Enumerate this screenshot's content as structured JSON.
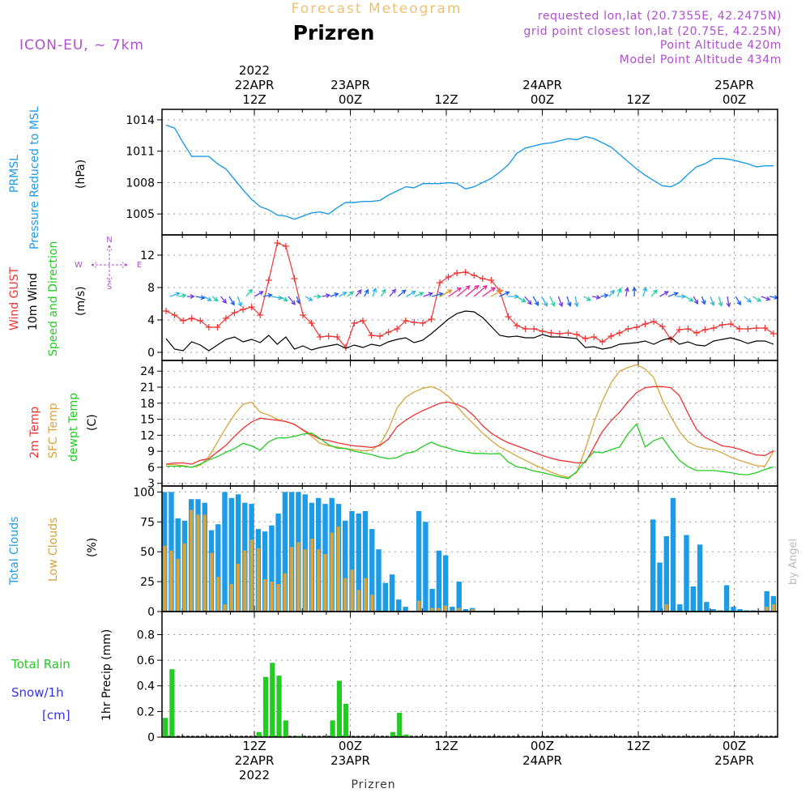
{
  "header": {
    "product": "Forecast Meteogram",
    "location": "Prizren",
    "model": "ICON-EU, ~ 7km",
    "requested": "requested lon,lat (20.7355E, 42.2475N)",
    "grid": "grid point closest lon,lat (20.75E, 42.25N)",
    "point_alt": "Point Altitude 420m",
    "model_alt": "Model Point Altitude 434m",
    "footer": "Prizren",
    "credit": "by Angel"
  },
  "colors": {
    "pressure": "#1e9be6",
    "gust": "#ee3333",
    "wind10m": "#000000",
    "temp2m": "#ee3333",
    "sfc": "#d9a33a",
    "dewpt": "#22cc22",
    "total_clouds": "#1e9be6",
    "low_clouds": "#d9a33a",
    "rain": "#22cc22",
    "snow": "#3333ee",
    "title_orange": "#f0c070",
    "purple": "#b04fd0"
  },
  "top_axis": [
    {
      "lines": [
        "2022",
        "22APR",
        "12Z"
      ],
      "t": 0
    },
    {
      "lines": [
        "23APR",
        "00Z"
      ],
      "t": 12
    },
    {
      "lines": [
        "12Z"
      ],
      "t": 24
    },
    {
      "lines": [
        "24APR",
        "00Z"
      ],
      "t": 36
    },
    {
      "lines": [
        "12Z"
      ],
      "t": 48
    },
    {
      "lines": [
        "25APR",
        "00Z"
      ],
      "t": 60
    }
  ],
  "bottom_axis": [
    {
      "lines": [
        "12Z",
        "22APR",
        "2022"
      ],
      "t": 0
    },
    {
      "lines": [
        "00Z",
        "23APR"
      ],
      "t": 12
    },
    {
      "lines": [
        "12Z"
      ],
      "t": 24
    },
    {
      "lines": [
        "00Z",
        "24APR"
      ],
      "t": 36
    },
    {
      "lines": [
        "12Z"
      ],
      "t": 48
    },
    {
      "lines": [
        "00Z",
        "25APR"
      ],
      "t": 60
    }
  ],
  "compass": {
    "n": "N",
    "s": "S",
    "w": "W",
    "e": "E"
  },
  "chart_data": [
    {
      "type": "line",
      "ylabel_lines": [
        "PRMSL",
        "Pressure Reduced to MSL"
      ],
      "unit": "(hPa)",
      "ylim": [
        1003,
        1015
      ],
      "yticks": [
        1005,
        1008,
        1011,
        1014
      ],
      "series": [
        {
          "name": "PRMSL",
          "values": [
            1013.5,
            1013.2,
            1011.8,
            1010.5,
            1010.5,
            1010.5,
            1009.8,
            1009.3,
            1008.3,
            1007.3,
            1006.4,
            1005.7,
            1005.4,
            1004.9,
            1004.8,
            1004.5,
            1004.8,
            1005.1,
            1005.2,
            1005.0,
            1005.6,
            1006.1,
            1006.1,
            1006.2,
            1006.2,
            1006.3,
            1006.8,
            1007.2,
            1007.6,
            1007.5,
            1007.9,
            1007.9,
            1007.9,
            1008.0,
            1007.9,
            1007.4,
            1007.6,
            1008.0,
            1008.4,
            1009.0,
            1009.7,
            1010.8,
            1011.3,
            1011.5,
            1011.7,
            1011.8,
            1012.0,
            1012.2,
            1012.1,
            1012.4,
            1012.2,
            1011.8,
            1011.4,
            1010.7,
            1010.0,
            1009.3,
            1008.7,
            1008.2,
            1007.7,
            1007.6,
            1008.0,
            1008.8,
            1009.5,
            1009.8,
            1010.3,
            1010.3,
            1010.2,
            1010.0,
            1009.8,
            1009.5,
            1009.6,
            1009.6
          ]
        }
      ]
    },
    {
      "type": "line",
      "ylabel_lines": [
        "Wind GUST",
        "10m Wind",
        "Speed and Direction"
      ],
      "unit": "(m/s)",
      "ylim": [
        -1,
        14.5
      ],
      "yticks": [
        0,
        4,
        8,
        12
      ],
      "series": [
        {
          "name": "Wind GUST",
          "values": [
            5.1,
            4.6,
            3.9,
            4.2,
            3.9,
            3.1,
            3.1,
            4.2,
            4.9,
            5.3,
            5.6,
            4.6,
            8.9,
            13.5,
            13.1,
            9.1,
            4.6,
            3.6,
            1.9,
            2.0,
            1.9,
            0.6,
            3.6,
            3.9,
            2.1,
            2.0,
            2.5,
            2.9,
            3.9,
            3.7,
            3.6,
            4.1,
            8.6,
            9.3,
            9.8,
            9.9,
            9.5,
            9.1,
            8.9,
            7.6,
            4.4,
            3.3,
            2.9,
            2.9,
            2.6,
            2.4,
            2.3,
            2.4,
            2.2,
            1.7,
            1.9,
            1.3,
            2.0,
            2.4,
            2.9,
            3.1,
            3.5,
            3.8,
            3.2,
            1.6,
            2.8,
            2.9,
            2.4,
            2.8,
            3.0,
            3.4,
            3.5,
            2.9,
            2.9,
            3.0,
            3.0,
            2.3
          ]
        },
        {
          "name": "10m Wind",
          "values": [
            1.7,
            0.4,
            0.2,
            1.3,
            0.9,
            0.2,
            0.9,
            1.6,
            1.9,
            1.3,
            1.6,
            1.2,
            2.1,
            1.0,
            1.9,
            0.4,
            0.8,
            0.3,
            0.6,
            0.8,
            1.0,
            0.5,
            0.9,
            0.6,
            1.0,
            0.8,
            1.3,
            1.6,
            1.8,
            1.2,
            1.5,
            2.3,
            3.2,
            4.1,
            4.8,
            5.1,
            5.0,
            4.3,
            3.2,
            2.1,
            1.9,
            2.0,
            1.8,
            1.8,
            2.2,
            1.9,
            1.9,
            1.8,
            1.7,
            0.6,
            0.7,
            0.4,
            0.6,
            1.0,
            1.1,
            1.2,
            1.4,
            1.0,
            1.5,
            1.8,
            1.0,
            1.3,
            0.9,
            0.8,
            1.4,
            1.6,
            1.8,
            1.5,
            1.1,
            1.4,
            1.4,
            1.0
          ]
        }
      ],
      "wind_dir_deg": [
        250,
        260,
        270,
        280,
        300,
        310,
        320,
        330,
        340,
        220,
        240,
        260,
        280,
        300,
        320,
        340,
        300,
        270,
        260,
        250,
        240,
        230,
        220,
        210,
        200,
        210,
        220,
        230,
        240,
        245,
        250,
        255,
        240,
        235,
        230,
        230,
        230,
        235,
        240,
        245,
        270,
        300,
        320,
        330,
        330,
        335,
        340,
        340,
        350,
        300,
        280,
        260,
        220,
        200,
        190,
        180,
        200,
        220,
        240,
        250,
        270,
        300,
        330,
        340,
        340,
        345,
        350,
        330,
        310,
        300,
        290,
        280
      ]
    },
    {
      "type": "line",
      "ylabel_lines": [
        "2m Temp",
        "SFC Temp",
        "dewpt Temp"
      ],
      "unit": "(C)",
      "ylim": [
        2.5,
        26
      ],
      "yticks": [
        3,
        6,
        9,
        12,
        15,
        18,
        21,
        24
      ],
      "series": [
        {
          "name": "2m Temp",
          "values": [
            6.6,
            6.8,
            6.8,
            6.6,
            7.3,
            7.6,
            8.9,
            10.1,
            11.8,
            13.3,
            14.5,
            15.2,
            15.0,
            14.8,
            14.6,
            14.0,
            13.0,
            12.1,
            11.3,
            11.0,
            10.6,
            10.3,
            10.0,
            9.9,
            9.7,
            10.1,
            11.3,
            13.6,
            14.8,
            15.8,
            16.6,
            17.3,
            18.0,
            18.2,
            17.8,
            17.0,
            15.6,
            13.8,
            12.4,
            11.4,
            10.6,
            10.0,
            9.4,
            8.8,
            8.2,
            7.7,
            7.3,
            7.1,
            6.8,
            6.9,
            9.8,
            12.7,
            14.7,
            16.3,
            18.3,
            20.0,
            20.9,
            21.1,
            21.1,
            20.9,
            19.4,
            16.1,
            13.1,
            11.6,
            10.8,
            10.0,
            9.8,
            9.4,
            8.8,
            8.3,
            8.2,
            9.1
          ]
        },
        {
          "name": "SFC Temp",
          "values": [
            6.5,
            6.5,
            6.3,
            6.0,
            6.4,
            8.0,
            10.7,
            13.4,
            15.9,
            17.8,
            18.2,
            16.3,
            15.8,
            15.0,
            14.5,
            14.1,
            12.9,
            11.8,
            10.5,
            10.0,
            9.8,
            9.5,
            9.3,
            9.1,
            9.2,
            10.3,
            13.1,
            17.1,
            19.1,
            20.1,
            20.8,
            21.1,
            20.5,
            19.3,
            17.4,
            15.6,
            14.0,
            12.4,
            11.0,
            9.8,
            9.0,
            8.1,
            7.3,
            6.5,
            5.8,
            5.1,
            4.5,
            4.1,
            5.0,
            9.4,
            14.4,
            18.4,
            21.8,
            24.0,
            24.7,
            25.2,
            24.4,
            22.8,
            18.6,
            15.5,
            12.7,
            10.8,
            9.9,
            9.5,
            9.3,
            8.7,
            7.9,
            7.3,
            6.8,
            6.3,
            6.2,
            9.0
          ]
        },
        {
          "name": "dewpt Temp",
          "values": [
            6.2,
            6.2,
            6.2,
            6.0,
            6.6,
            7.4,
            8.0,
            8.8,
            9.5,
            10.5,
            10.0,
            9.2,
            10.8,
            11.5,
            11.5,
            11.8,
            12.2,
            12.4,
            11.4,
            10.2,
            9.6,
            9.5,
            9.0,
            8.7,
            8.4,
            7.9,
            7.6,
            7.8,
            8.6,
            8.9,
            9.9,
            10.7,
            10.0,
            9.6,
            9.1,
            8.8,
            8.6,
            8.6,
            8.5,
            8.6,
            7.0,
            6.1,
            5.8,
            5.3,
            5.0,
            4.6,
            4.2,
            3.9,
            5.2,
            7.2,
            8.9,
            8.7,
            9.3,
            9.8,
            12.3,
            14.1,
            9.8,
            11.0,
            11.6,
            9.3,
            7.3,
            6.1,
            5.4,
            5.4,
            5.4,
            5.2,
            5.0,
            4.7,
            4.6,
            5.0,
            5.6,
            6.1
          ]
        }
      ]
    },
    {
      "type": "bar",
      "ylabel_lines": [
        "Total Clouds",
        "Low Clouds"
      ],
      "unit": "(%)",
      "ylim": [
        0,
        105
      ],
      "yticks": [
        0,
        25,
        50,
        75,
        100
      ],
      "series": [
        {
          "name": "Total Clouds",
          "values": [
            100,
            100,
            78,
            76,
            94,
            94,
            91,
            68,
            73,
            100,
            95,
            98,
            91,
            90,
            69,
            67,
            72,
            82,
            100,
            100,
            100,
            98,
            91,
            95,
            90,
            95,
            90,
            76,
            84,
            82,
            84,
            69,
            52,
            24,
            31,
            10,
            4,
            0,
            84,
            75,
            19,
            51,
            47,
            4,
            25,
            2,
            3,
            0,
            0,
            0,
            0,
            0,
            0,
            0,
            0,
            0,
            0,
            0,
            0,
            0,
            0,
            0,
            0,
            0,
            0,
            0,
            0,
            0,
            0,
            0,
            0,
            0,
            0,
            77,
            41,
            63,
            95,
            6,
            64,
            21,
            56,
            8,
            2,
            1,
            22,
            4,
            2,
            1,
            1,
            0,
            17,
            13
          ]
        },
        {
          "name": "Low Clouds",
          "values": [
            55,
            51,
            44,
            57,
            85,
            81,
            81,
            49,
            29,
            6,
            23,
            40,
            51,
            60,
            53,
            27,
            25,
            23,
            32,
            54,
            58,
            52,
            61,
            52,
            48,
            66,
            71,
            28,
            35,
            18,
            28,
            14,
            0,
            0,
            0,
            0,
            0,
            0,
            9,
            0,
            3,
            3,
            5,
            1,
            3,
            0,
            2,
            0,
            0,
            0,
            0,
            0,
            0,
            0,
            0,
            0,
            0,
            0,
            0,
            0,
            0,
            0,
            0,
            0,
            0,
            0,
            0,
            0,
            0,
            0,
            0,
            0,
            0,
            0,
            0,
            6,
            0,
            0,
            0,
            0,
            0,
            0,
            0,
            0,
            0,
            0,
            0,
            0,
            0,
            0,
            4,
            6
          ]
        }
      ]
    },
    {
      "type": "bar",
      "ylabel_lines": [
        "1hr Precip (mm)"
      ],
      "legend_lines": [
        "Total  Rain",
        "Snow/1h",
        "[cm]"
      ],
      "ylim": [
        0,
        0.98
      ],
      "yticks": [
        0,
        0.2,
        0.4,
        0.6,
        0.8
      ],
      "series": [
        {
          "name": "Total Rain",
          "values": [
            0.15,
            0.53,
            0,
            0,
            0,
            0,
            0,
            0,
            0,
            0,
            0,
            0,
            0,
            0,
            0.04,
            0.47,
            0.58,
            0.48,
            0.13,
            0,
            0.01,
            0,
            0,
            0,
            0,
            0.13,
            0.44,
            0.26,
            0,
            0,
            0,
            0,
            0,
            0,
            0.04,
            0.19,
            0.02,
            0,
            0,
            0,
            0,
            0,
            0,
            0,
            0,
            0,
            0,
            0,
            0,
            0,
            0,
            0,
            0,
            0,
            0,
            0,
            0,
            0,
            0,
            0,
            0,
            0,
            0,
            0,
            0,
            0,
            0,
            0,
            0,
            0,
            0,
            0,
            0,
            0,
            0,
            0,
            0,
            0,
            0,
            0,
            0,
            0,
            0,
            0,
            0,
            0,
            0,
            0,
            0,
            0,
            0,
            0
          ]
        }
      ]
    }
  ]
}
